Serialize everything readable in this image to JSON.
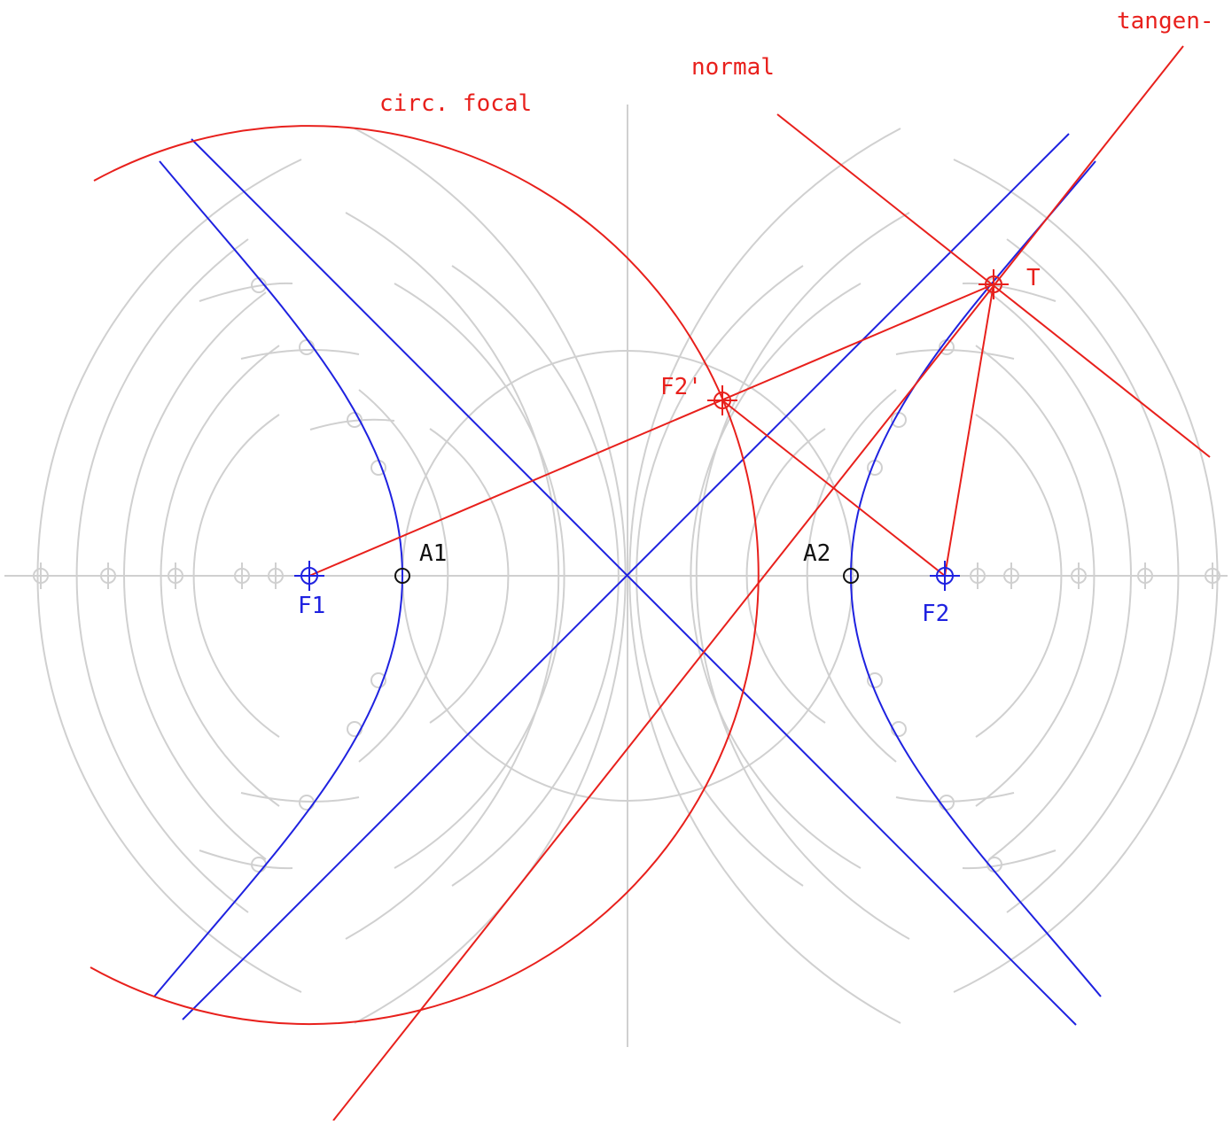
{
  "colors": {
    "construction": "#d0d0d0",
    "hyperbola": "#1f22e0",
    "tangent_construction": "#e8201c",
    "vertex": "#111111"
  },
  "labels": {
    "tangent": "tangen-",
    "normal": "normal",
    "focal_circle": "circ. focal",
    "point_t": "T",
    "point_f2_prime": "F2'",
    "vertex_a1": "A1",
    "vertex_a2": "A2",
    "focus_f1": "F1",
    "focus_f2": "F2"
  }
}
